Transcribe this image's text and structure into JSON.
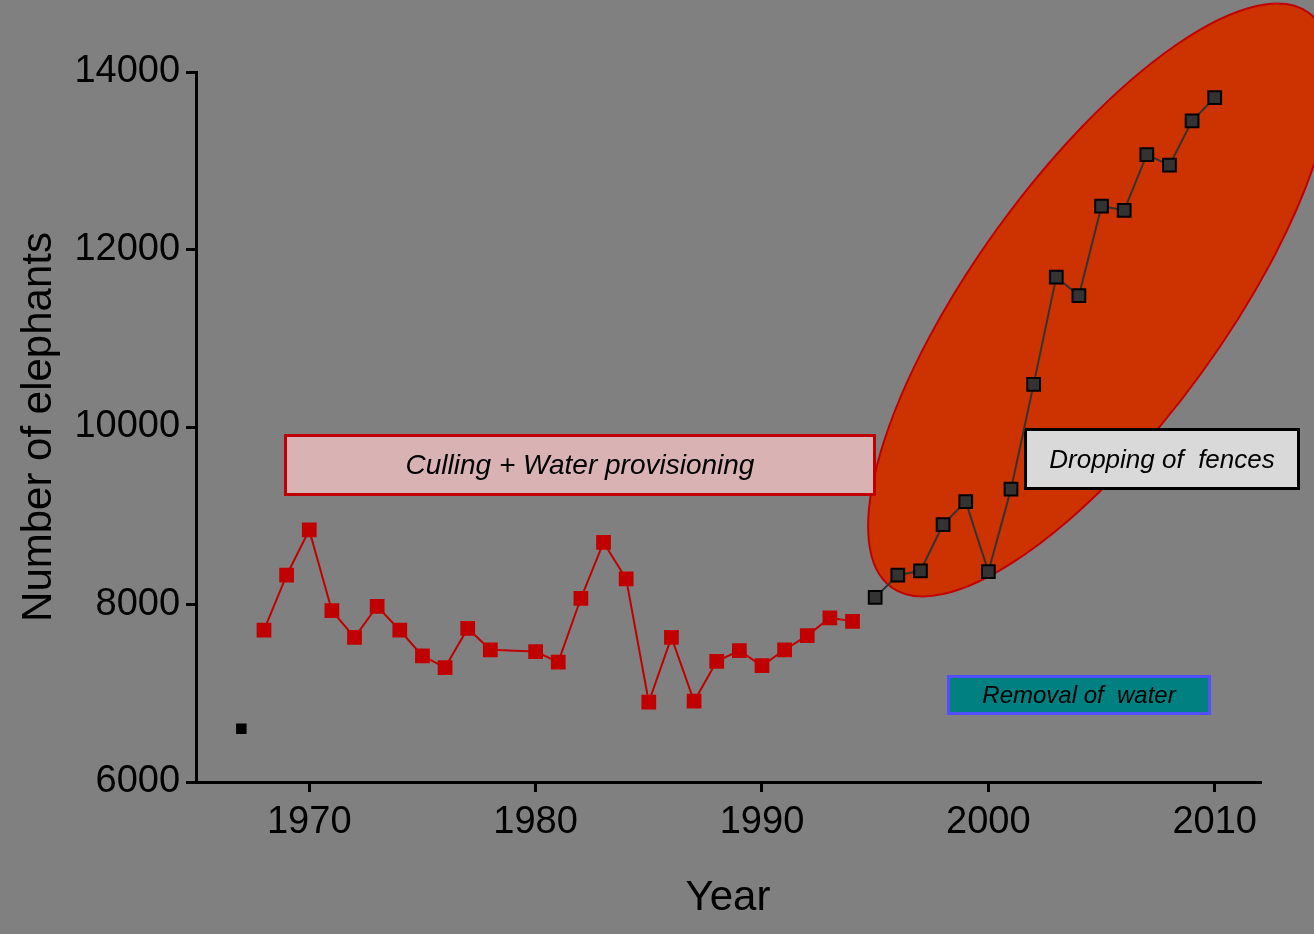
{
  "chart_data": {
    "type": "line",
    "xlabel": "Year",
    "ylabel": "Number of elephants",
    "xlim": [
      1965,
      2012
    ],
    "xticks": [
      1970,
      1980,
      1990,
      2000,
      2010
    ],
    "ylim": [
      6000,
      14000
    ],
    "yticks": [
      6000,
      8000,
      10000,
      12000,
      14000
    ],
    "grid": false,
    "legend": false,
    "marker": "square",
    "annotations": [
      "Culling + Water provisioning",
      "Dropping of  fences",
      "Removal of  water"
    ],
    "series": [
      {
        "type": "scatter",
        "color": "#000000",
        "x": [
          1967
        ],
        "values": [
          6600
        ]
      },
      {
        "color": "#c00000",
        "x": [
          1968,
          1969,
          1970,
          1971,
          1972,
          1973,
          1974,
          1975,
          1976,
          1977,
          1978,
          1980,
          1981,
          1982,
          1983,
          1984,
          1985,
          1986,
          1987,
          1988,
          1989,
          1990,
          1991,
          1992,
          1993,
          1994
        ],
        "values": [
          7710,
          8330,
          8840,
          7930,
          7630,
          7980,
          7710,
          7420,
          7290,
          7730,
          7490,
          7470,
          7350,
          8070,
          8700,
          8290,
          6900,
          7630,
          6910,
          7360,
          7480,
          7310,
          7490,
          7650,
          7850,
          7810
        ]
      },
      {
        "color": "#333333",
        "x": [
          1995,
          1996,
          1997,
          1998,
          1999,
          2000,
          2001,
          2002,
          2003,
          2004,
          2005,
          2006,
          2007,
          2008,
          2009,
          2010
        ],
        "values": [
          8080,
          8330,
          8380,
          8900,
          9160,
          8370,
          9300,
          10480,
          11690,
          11480,
          12490,
          12440,
          13070,
          12950,
          13450,
          13710
        ]
      }
    ]
  }
}
